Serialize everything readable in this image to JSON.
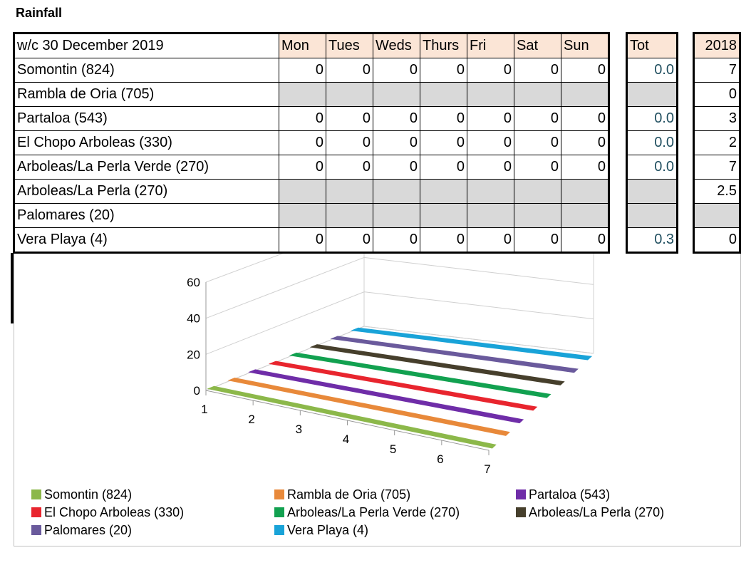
{
  "title": "Rainfall",
  "table": {
    "week_label": "w/c 30 December 2019",
    "days": [
      "Mon",
      "Tues",
      "Weds",
      "Thurs",
      "Fri",
      "Sat",
      "Sun"
    ],
    "tot_header": "Tot",
    "prev_header": "2018",
    "rows": [
      {
        "location": "Somontin (824)",
        "values": [
          "0",
          "0",
          "0",
          "0",
          "0",
          "0",
          "0"
        ],
        "tot": "0.0",
        "prev": "7"
      },
      {
        "location": "Rambla de Oria (705)",
        "values": [
          "",
          "",
          "",
          "",
          "",
          "",
          ""
        ],
        "tot": "",
        "prev": "0"
      },
      {
        "location": "Partaloa (543)",
        "values": [
          "0",
          "0",
          "0",
          "0",
          "0",
          "0",
          "0"
        ],
        "tot": "0.0",
        "prev": "3"
      },
      {
        "location": "El Chopo Arboleas (330)",
        "values": [
          "0",
          "0",
          "0",
          "0",
          "0",
          "0",
          "0"
        ],
        "tot": "0.0",
        "prev": "2"
      },
      {
        "location": "Arboleas/La Perla Verde (270)",
        "values": [
          "0",
          "0",
          "0",
          "0",
          "0",
          "0",
          "0"
        ],
        "tot": "0.0",
        "prev": "7"
      },
      {
        "location": "Arboleas/La Perla (270)",
        "values": [
          "",
          "",
          "",
          "",
          "",
          "",
          ""
        ],
        "tot": "",
        "prev": "2.5"
      },
      {
        "location": "Palomares (20)",
        "values": [
          "",
          "",
          "",
          "",
          "",
          "",
          ""
        ],
        "tot": "",
        "prev": ""
      },
      {
        "location": "Vera Playa (4)",
        "values": [
          "0",
          "0",
          "0",
          "0",
          "0",
          "0",
          "0"
        ],
        "tot": "0.3",
        "prev": "0"
      }
    ]
  },
  "chart_data": {
    "type": "line",
    "subtype": "3d-line",
    "x": [
      "1",
      "2",
      "3",
      "4",
      "5",
      "6",
      "7"
    ],
    "y_ticks": [
      "0",
      "20",
      "40",
      "60"
    ],
    "ylim": [
      0,
      60
    ],
    "grid": true,
    "legend_position": "bottom",
    "series": [
      {
        "name": "Somontin (824)",
        "color": "#8cb84a",
        "values": [
          0,
          0,
          0,
          0,
          0,
          0,
          0
        ]
      },
      {
        "name": "Rambla de Oria (705)",
        "color": "#e8893a",
        "values": [
          0,
          0,
          0,
          0,
          0,
          0,
          0
        ]
      },
      {
        "name": "Partaloa (543)",
        "color": "#6f2da8",
        "values": [
          0,
          0,
          0,
          0,
          0,
          0,
          0
        ]
      },
      {
        "name": "El Chopo Arboleas (330)",
        "color": "#e8252e",
        "values": [
          0,
          0,
          0,
          0,
          0,
          0,
          0
        ]
      },
      {
        "name": "Arboleas/La Perla Verde (270)",
        "color": "#12a150",
        "values": [
          0,
          0,
          0,
          0,
          0,
          0,
          0
        ]
      },
      {
        "name": "Arboleas/La Perla (270)",
        "color": "#463f2c",
        "values": [
          0,
          0,
          0,
          0,
          0,
          0,
          0
        ]
      },
      {
        "name": "Palomares (20)",
        "color": "#6a5a9c",
        "values": [
          0,
          0,
          0,
          0,
          0,
          0,
          0
        ]
      },
      {
        "name": "Vera Playa (4)",
        "color": "#19a3d8",
        "values": [
          0,
          0,
          0,
          0,
          0,
          0,
          0
        ]
      }
    ]
  }
}
